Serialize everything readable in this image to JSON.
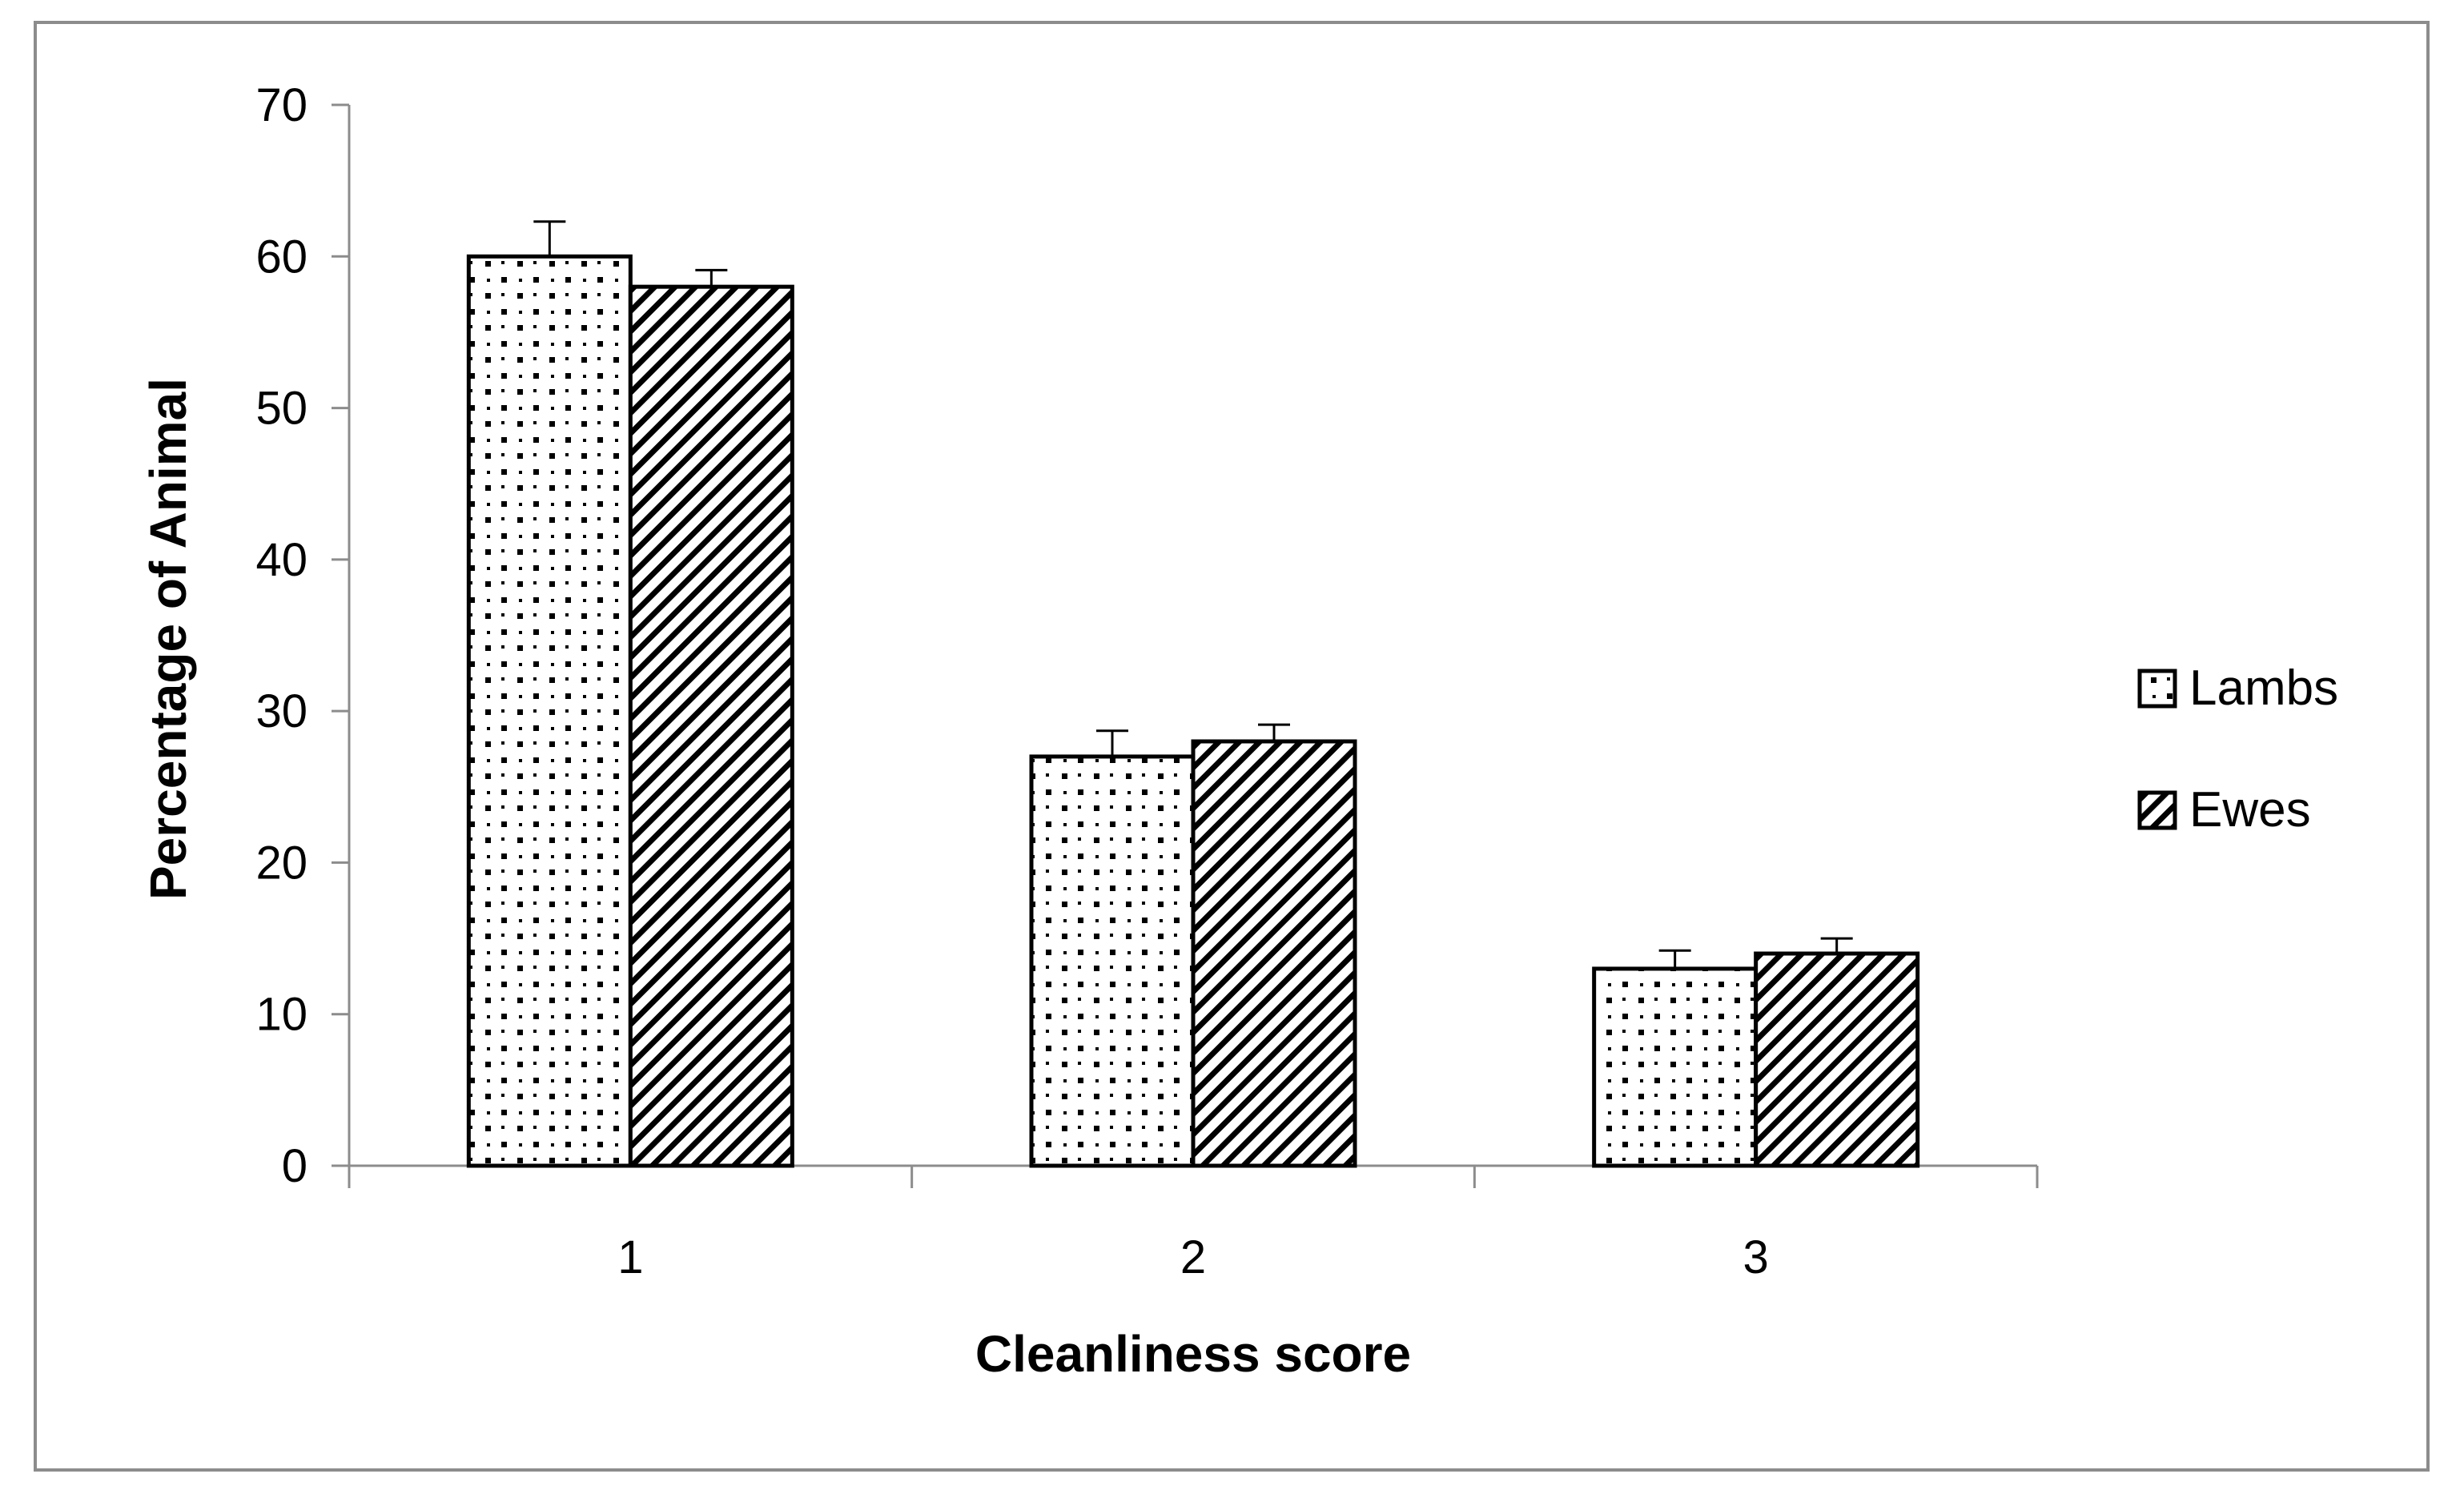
{
  "chart_data": {
    "type": "bar",
    "categories": [
      "1",
      "2",
      "3"
    ],
    "series": [
      {
        "name": "Lambs",
        "values": [
          60,
          27,
          13
        ],
        "errors": [
          2.3,
          1.7,
          1.2
        ],
        "pattern": "dots"
      },
      {
        "name": "Ewes",
        "values": [
          58,
          28,
          14
        ],
        "errors": [
          1.1,
          1.1,
          1.0
        ],
        "pattern": "diagonal"
      }
    ],
    "title": "",
    "xlabel": "Cleanliness score",
    "ylabel": "Percentage of Animal",
    "ylim": [
      0,
      70
    ],
    "yticks": [
      "0",
      "10",
      "20",
      "30",
      "40",
      "50",
      "60",
      "70"
    ],
    "grid": false,
    "legend": "right",
    "colors": {
      "fill": "#ffffff",
      "pattern": "#000000",
      "axis": "#8c8c8c",
      "frame": "#8c8c8c"
    }
  }
}
